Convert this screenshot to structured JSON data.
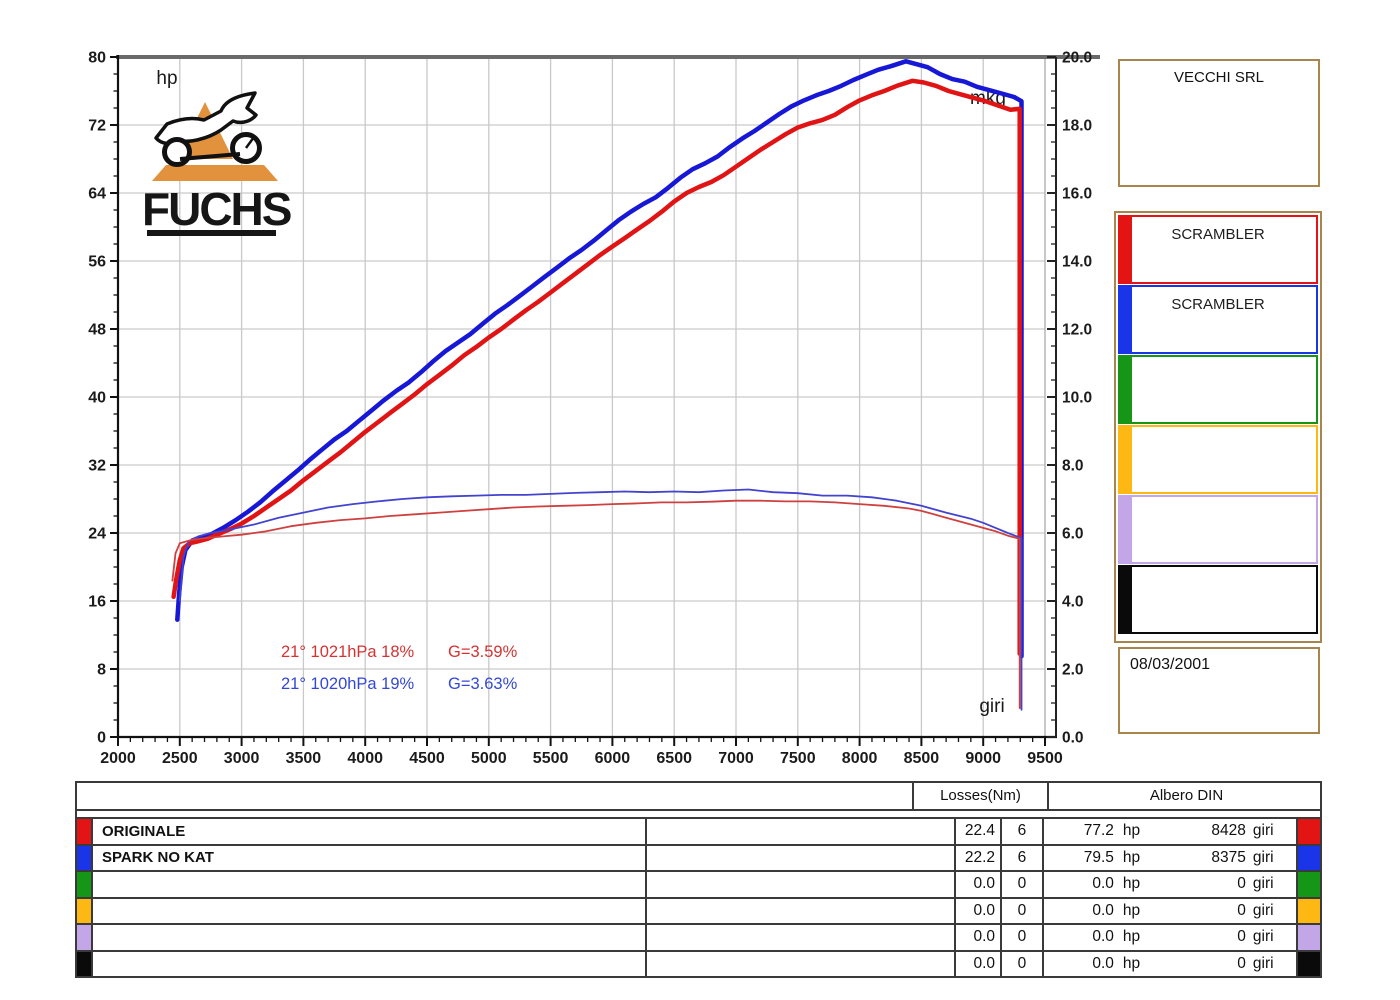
{
  "logo": {
    "brand": "FUCHS"
  },
  "sidebar": {
    "company": "VECCHI SRL",
    "date": "08/03/2001",
    "frame_color": "#a9854e",
    "runs": [
      {
        "label": "SCRAMBLER",
        "color": "#e21414"
      },
      {
        "label": "SCRAMBLER",
        "color": "#1a35e8"
      },
      {
        "label": "",
        "color": "#169616"
      },
      {
        "label": "",
        "color": "#fdb813"
      },
      {
        "label": "",
        "color": "#c3a6e8"
      },
      {
        "label": "",
        "color": "#0a0a0a"
      }
    ]
  },
  "table": {
    "losses_header": "Losses(Nm)",
    "albero_header": "Albero DIN",
    "rows": [
      {
        "name": "ORIGINALE",
        "color": "#e21414",
        "loss": "22.4",
        "loss_n": "6",
        "power": "77.2",
        "power_unit": "hp",
        "rpm": "8428",
        "rpm_unit": "giri"
      },
      {
        "name": "SPARK NO KAT",
        "color": "#1a35e8",
        "loss": "22.2",
        "loss_n": "6",
        "power": "79.5",
        "power_unit": "hp",
        "rpm": "8375",
        "rpm_unit": "giri"
      },
      {
        "name": "",
        "color": "#169616",
        "loss": "0.0",
        "loss_n": "0",
        "power": "0.0",
        "power_unit": "hp",
        "rpm": "0",
        "rpm_unit": "giri"
      },
      {
        "name": "",
        "color": "#fdb813",
        "loss": "0.0",
        "loss_n": "0",
        "power": "0.0",
        "power_unit": "hp",
        "rpm": "0",
        "rpm_unit": "giri"
      },
      {
        "name": "",
        "color": "#c3a6e8",
        "loss": "0.0",
        "loss_n": "0",
        "power": "0.0",
        "power_unit": "hp",
        "rpm": "0",
        "rpm_unit": "giri"
      },
      {
        "name": "",
        "color": "#0a0a0a",
        "loss": "0.0",
        "loss_n": "0",
        "power": "0.0",
        "power_unit": "hp",
        "rpm": "0",
        "rpm_unit": "giri"
      }
    ]
  },
  "chart_data": {
    "type": "line",
    "title": "",
    "grid": true,
    "x_axis": {
      "label": "giri",
      "min": 2000,
      "max": 9500,
      "major_step": 500,
      "minor_step": 100
    },
    "y_left": {
      "label": "hp",
      "min": 0,
      "max": 80,
      "major_step": 8,
      "minor_step": 2
    },
    "y_right": {
      "label": "mkg",
      "min": 0,
      "max": 20,
      "major_step": 2,
      "minor_step": 0.5
    },
    "annotations": [
      {
        "env": "21° 1021hPa 18%",
        "g": "G=3.59%",
        "color": "#d43333"
      },
      {
        "env": "21° 1020hPa 19%",
        "g": "G=3.63%",
        "color": "#3348d4"
      }
    ],
    "series": [
      {
        "name": "SPARK NO KAT hp",
        "axis": "left",
        "color": "#1717d6",
        "width": 4.5,
        "end_drop": 9.5,
        "points": [
          [
            2480,
            13.8
          ],
          [
            2495,
            17
          ],
          [
            2515,
            20
          ],
          [
            2545,
            22
          ],
          [
            2600,
            23.1
          ],
          [
            2650,
            23.4
          ],
          [
            2700,
            23.6
          ],
          [
            2760,
            23.9
          ],
          [
            2850,
            24.6
          ],
          [
            2950,
            25.5
          ],
          [
            3050,
            26.5
          ],
          [
            3150,
            27.6
          ],
          [
            3250,
            28.9
          ],
          [
            3350,
            30.1
          ],
          [
            3450,
            31.3
          ],
          [
            3550,
            32.6
          ],
          [
            3650,
            33.8
          ],
          [
            3750,
            35
          ],
          [
            3850,
            36
          ],
          [
            3950,
            37.2
          ],
          [
            4050,
            38.4
          ],
          [
            4150,
            39.6
          ],
          [
            4250,
            40.7
          ],
          [
            4350,
            41.7
          ],
          [
            4450,
            42.9
          ],
          [
            4550,
            44.2
          ],
          [
            4650,
            45.4
          ],
          [
            4750,
            46.4
          ],
          [
            4850,
            47.4
          ],
          [
            4950,
            48.6
          ],
          [
            5050,
            49.8
          ],
          [
            5150,
            50.8
          ],
          [
            5250,
            51.9
          ],
          [
            5350,
            53
          ],
          [
            5450,
            54.1
          ],
          [
            5550,
            55.2
          ],
          [
            5650,
            56.3
          ],
          [
            5750,
            57.3
          ],
          [
            5850,
            58.4
          ],
          [
            5950,
            59.6
          ],
          [
            6050,
            60.8
          ],
          [
            6150,
            61.8
          ],
          [
            6250,
            62.7
          ],
          [
            6350,
            63.5
          ],
          [
            6450,
            64.6
          ],
          [
            6550,
            65.8
          ],
          [
            6650,
            66.8
          ],
          [
            6750,
            67.5
          ],
          [
            6850,
            68.3
          ],
          [
            6950,
            69.4
          ],
          [
            7050,
            70.4
          ],
          [
            7150,
            71.3
          ],
          [
            7250,
            72.3
          ],
          [
            7350,
            73.3
          ],
          [
            7450,
            74.2
          ],
          [
            7550,
            74.9
          ],
          [
            7650,
            75.5
          ],
          [
            7750,
            76
          ],
          [
            7850,
            76.6
          ],
          [
            7950,
            77.3
          ],
          [
            8050,
            77.9
          ],
          [
            8150,
            78.5
          ],
          [
            8250,
            78.9
          ],
          [
            8375,
            79.5
          ],
          [
            8450,
            79.2
          ],
          [
            8550,
            78.8
          ],
          [
            8650,
            78
          ],
          [
            8750,
            77.4
          ],
          [
            8850,
            77.1
          ],
          [
            8950,
            76.5
          ],
          [
            9050,
            76.1
          ],
          [
            9150,
            75.7
          ],
          [
            9250,
            75.3
          ],
          [
            9310,
            74.8
          ]
        ]
      },
      {
        "name": "ORIGINALE hp",
        "axis": "left",
        "color": "#e01414",
        "width": 4.5,
        "end_drop": 9.8,
        "points": [
          [
            2450,
            16.5
          ],
          [
            2470,
            18.5
          ],
          [
            2500,
            20.8
          ],
          [
            2530,
            22.2
          ],
          [
            2580,
            22.8
          ],
          [
            2640,
            23
          ],
          [
            2720,
            23.3
          ],
          [
            2800,
            23.8
          ],
          [
            2900,
            24.4
          ],
          [
            3000,
            25.1
          ],
          [
            3100,
            26
          ],
          [
            3200,
            27
          ],
          [
            3300,
            28
          ],
          [
            3400,
            29
          ],
          [
            3500,
            30.2
          ],
          [
            3600,
            31.3
          ],
          [
            3700,
            32.4
          ],
          [
            3800,
            33.5
          ],
          [
            3900,
            34.7
          ],
          [
            4000,
            35.9
          ],
          [
            4100,
            37
          ],
          [
            4200,
            38.1
          ],
          [
            4300,
            39.2
          ],
          [
            4400,
            40.3
          ],
          [
            4500,
            41.5
          ],
          [
            4600,
            42.6
          ],
          [
            4700,
            43.7
          ],
          [
            4800,
            44.9
          ],
          [
            4900,
            45.9
          ],
          [
            5000,
            47
          ],
          [
            5100,
            48
          ],
          [
            5200,
            49.1
          ],
          [
            5300,
            50.2
          ],
          [
            5400,
            51.2
          ],
          [
            5500,
            52.3
          ],
          [
            5600,
            53.4
          ],
          [
            5700,
            54.5
          ],
          [
            5800,
            55.6
          ],
          [
            5900,
            56.7
          ],
          [
            6000,
            57.7
          ],
          [
            6100,
            58.7
          ],
          [
            6200,
            59.7
          ],
          [
            6300,
            60.7
          ],
          [
            6400,
            61.8
          ],
          [
            6500,
            63
          ],
          [
            6600,
            64
          ],
          [
            6700,
            64.7
          ],
          [
            6800,
            65.3
          ],
          [
            6900,
            66.1
          ],
          [
            7000,
            67.1
          ],
          [
            7100,
            68.1
          ],
          [
            7200,
            69.1
          ],
          [
            7300,
            70
          ],
          [
            7400,
            70.9
          ],
          [
            7500,
            71.7
          ],
          [
            7600,
            72.2
          ],
          [
            7700,
            72.6
          ],
          [
            7800,
            73.2
          ],
          [
            7900,
            74.1
          ],
          [
            8000,
            74.9
          ],
          [
            8100,
            75.5
          ],
          [
            8200,
            76
          ],
          [
            8300,
            76.6
          ],
          [
            8428,
            77.2
          ],
          [
            8520,
            77
          ],
          [
            8620,
            76.6
          ],
          [
            8720,
            76
          ],
          [
            8820,
            75.6
          ],
          [
            8920,
            75.2
          ],
          [
            9020,
            74.8
          ],
          [
            9120,
            74.3
          ],
          [
            9220,
            73.8
          ],
          [
            9295,
            73.9
          ]
        ]
      },
      {
        "name": "SPARK NO KAT mkg",
        "axis": "right",
        "color": "#4343cf",
        "width": 1.8,
        "end_drop": 0.8,
        "points": [
          [
            2500,
            4
          ],
          [
            2530,
            5.3
          ],
          [
            2570,
            5.75
          ],
          [
            2650,
            5.9
          ],
          [
            2750,
            6
          ],
          [
            2900,
            6.1
          ],
          [
            3100,
            6.25
          ],
          [
            3300,
            6.45
          ],
          [
            3500,
            6.6
          ],
          [
            3700,
            6.75
          ],
          [
            3900,
            6.85
          ],
          [
            4100,
            6.93
          ],
          [
            4300,
            7
          ],
          [
            4500,
            7.05
          ],
          [
            4700,
            7.08
          ],
          [
            4900,
            7.1
          ],
          [
            5100,
            7.12
          ],
          [
            5300,
            7.12
          ],
          [
            5500,
            7.15
          ],
          [
            5700,
            7.18
          ],
          [
            5900,
            7.2
          ],
          [
            6100,
            7.22
          ],
          [
            6300,
            7.2
          ],
          [
            6500,
            7.22
          ],
          [
            6700,
            7.2
          ],
          [
            6900,
            7.25
          ],
          [
            7100,
            7.28
          ],
          [
            7300,
            7.2
          ],
          [
            7500,
            7.17
          ],
          [
            7700,
            7.1
          ],
          [
            7900,
            7.1
          ],
          [
            8100,
            7.05
          ],
          [
            8300,
            6.95
          ],
          [
            8500,
            6.8
          ],
          [
            8700,
            6.6
          ],
          [
            8900,
            6.42
          ],
          [
            9000,
            6.3
          ],
          [
            9100,
            6.15
          ],
          [
            9200,
            6
          ],
          [
            9310,
            5.85
          ]
        ]
      },
      {
        "name": "ORIGINALE mkg",
        "axis": "right",
        "color": "#cf4040",
        "width": 1.8,
        "end_drop": 0.85,
        "points": [
          [
            2440,
            4.6
          ],
          [
            2465,
            5.4
          ],
          [
            2500,
            5.7
          ],
          [
            2600,
            5.8
          ],
          [
            2700,
            5.85
          ],
          [
            2850,
            5.9
          ],
          [
            3000,
            5.95
          ],
          [
            3200,
            6.05
          ],
          [
            3400,
            6.2
          ],
          [
            3600,
            6.3
          ],
          [
            3800,
            6.38
          ],
          [
            4000,
            6.43
          ],
          [
            4200,
            6.5
          ],
          [
            4400,
            6.55
          ],
          [
            4600,
            6.6
          ],
          [
            4800,
            6.65
          ],
          [
            5000,
            6.7
          ],
          [
            5200,
            6.75
          ],
          [
            5400,
            6.78
          ],
          [
            5600,
            6.8
          ],
          [
            5800,
            6.82
          ],
          [
            6000,
            6.85
          ],
          [
            6200,
            6.87
          ],
          [
            6400,
            6.9
          ],
          [
            6600,
            6.9
          ],
          [
            6800,
            6.92
          ],
          [
            7000,
            6.95
          ],
          [
            7200,
            6.95
          ],
          [
            7400,
            6.93
          ],
          [
            7600,
            6.93
          ],
          [
            7800,
            6.9
          ],
          [
            8000,
            6.85
          ],
          [
            8200,
            6.8
          ],
          [
            8400,
            6.72
          ],
          [
            8500,
            6.65
          ],
          [
            8600,
            6.55
          ],
          [
            8700,
            6.45
          ],
          [
            8800,
            6.35
          ],
          [
            8900,
            6.25
          ],
          [
            9000,
            6.15
          ],
          [
            9100,
            6.05
          ],
          [
            9200,
            5.92
          ],
          [
            9295,
            5.83
          ]
        ]
      }
    ]
  }
}
